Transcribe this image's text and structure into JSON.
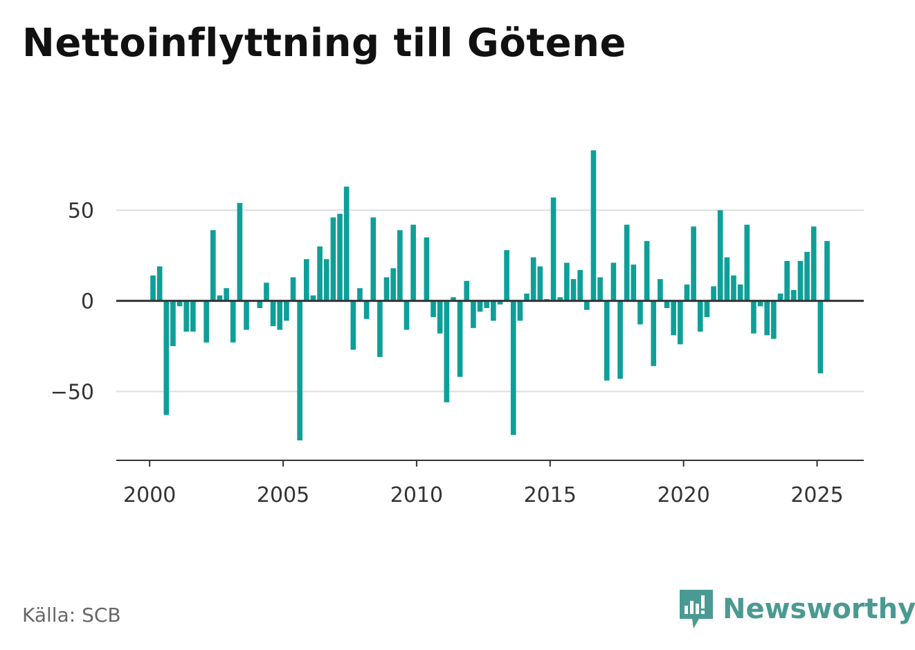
{
  "title": "Nettoinflyttning till Götene",
  "source": "Källa: SCB",
  "brand": {
    "name": "Newsworthy",
    "icon": "newsworthy-logo-icon"
  },
  "colors": {
    "bar": "#0e9f98",
    "zero_line": "#333333",
    "grid": "#dddddd",
    "axis": "#333333",
    "brand": "#4a9a93"
  },
  "chart_data": {
    "type": "bar",
    "title": "Nettoinflyttning till Götene",
    "xlabel": "",
    "ylabel": "",
    "x_ticks": [
      "2000",
      "2005",
      "2010",
      "2015",
      "2020",
      "2025"
    ],
    "y_ticks": [
      "50",
      "0",
      "−50"
    ],
    "y_tick_values": [
      50,
      0,
      -50
    ],
    "ylim": [
      -88,
      85
    ],
    "xlim": [
      1998.75,
      2026.75
    ],
    "grid": true,
    "legend": "none",
    "series": [
      {
        "x": [
          2000.125,
          2000.375,
          2000.625,
          2000.875,
          2001.125,
          2001.375,
          2001.625,
          2001.875,
          2002.125,
          2002.375,
          2002.625,
          2002.875,
          2003.125,
          2003.375,
          2003.625,
          2003.875,
          2004.125,
          2004.375,
          2004.625,
          2004.875,
          2005.125,
          2005.375,
          2005.625,
          2005.875,
          2006.125,
          2006.375,
          2006.625,
          2006.875,
          2007.125,
          2007.375,
          2007.625,
          2007.875,
          2008.125,
          2008.375,
          2008.625,
          2008.875,
          2009.125,
          2009.375,
          2009.625,
          2009.875,
          2010.125,
          2010.375,
          2010.625,
          2010.875,
          2011.125,
          2011.375,
          2011.625,
          2011.875,
          2012.125,
          2012.375,
          2012.625,
          2012.875,
          2013.125,
          2013.375,
          2013.625,
          2013.875,
          2014.125,
          2014.375,
          2014.625,
          2014.875,
          2015.125,
          2015.375,
          2015.625,
          2015.875,
          2016.125,
          2016.375,
          2016.625,
          2016.875,
          2017.125,
          2017.375,
          2017.625,
          2017.875,
          2018.125,
          2018.375,
          2018.625,
          2018.875,
          2019.125,
          2019.375,
          2019.625,
          2019.875,
          2020.125,
          2020.375,
          2020.625,
          2020.875,
          2021.125,
          2021.375,
          2021.625,
          2021.875,
          2022.125,
          2022.375,
          2022.625,
          2022.875,
          2023.125,
          2023.375,
          2023.625,
          2023.875,
          2024.125,
          2024.375,
          2024.625,
          2024.875,
          2025.125,
          2025.375
        ],
        "values": [
          14,
          19,
          -63,
          -25,
          -3,
          -17,
          -17,
          0,
          -23,
          39,
          3,
          7,
          -23,
          54,
          -16,
          0,
          -4,
          10,
          -14,
          -16,
          -11,
          13,
          -77,
          23,
          3,
          30,
          23,
          46,
          48,
          63,
          -27,
          7,
          -10,
          46,
          -31,
          13,
          18,
          39,
          -16,
          42,
          0,
          35,
          -9,
          -18,
          -56,
          2,
          -42,
          11,
          -15,
          -6,
          -4,
          -11,
          -2,
          28,
          -74,
          -11,
          4,
          24,
          19,
          1,
          57,
          2,
          21,
          12,
          17,
          -5,
          83,
          13,
          -44,
          21,
          -43,
          42,
          20,
          -13,
          33,
          -36,
          12,
          -4,
          -19,
          -24,
          9,
          41,
          -17,
          -9,
          8,
          50,
          24,
          14,
          9,
          42,
          -18,
          -3,
          -19,
          -21,
          4,
          22,
          6,
          22,
          27,
          41,
          -40,
          33
        ]
      }
    ]
  }
}
